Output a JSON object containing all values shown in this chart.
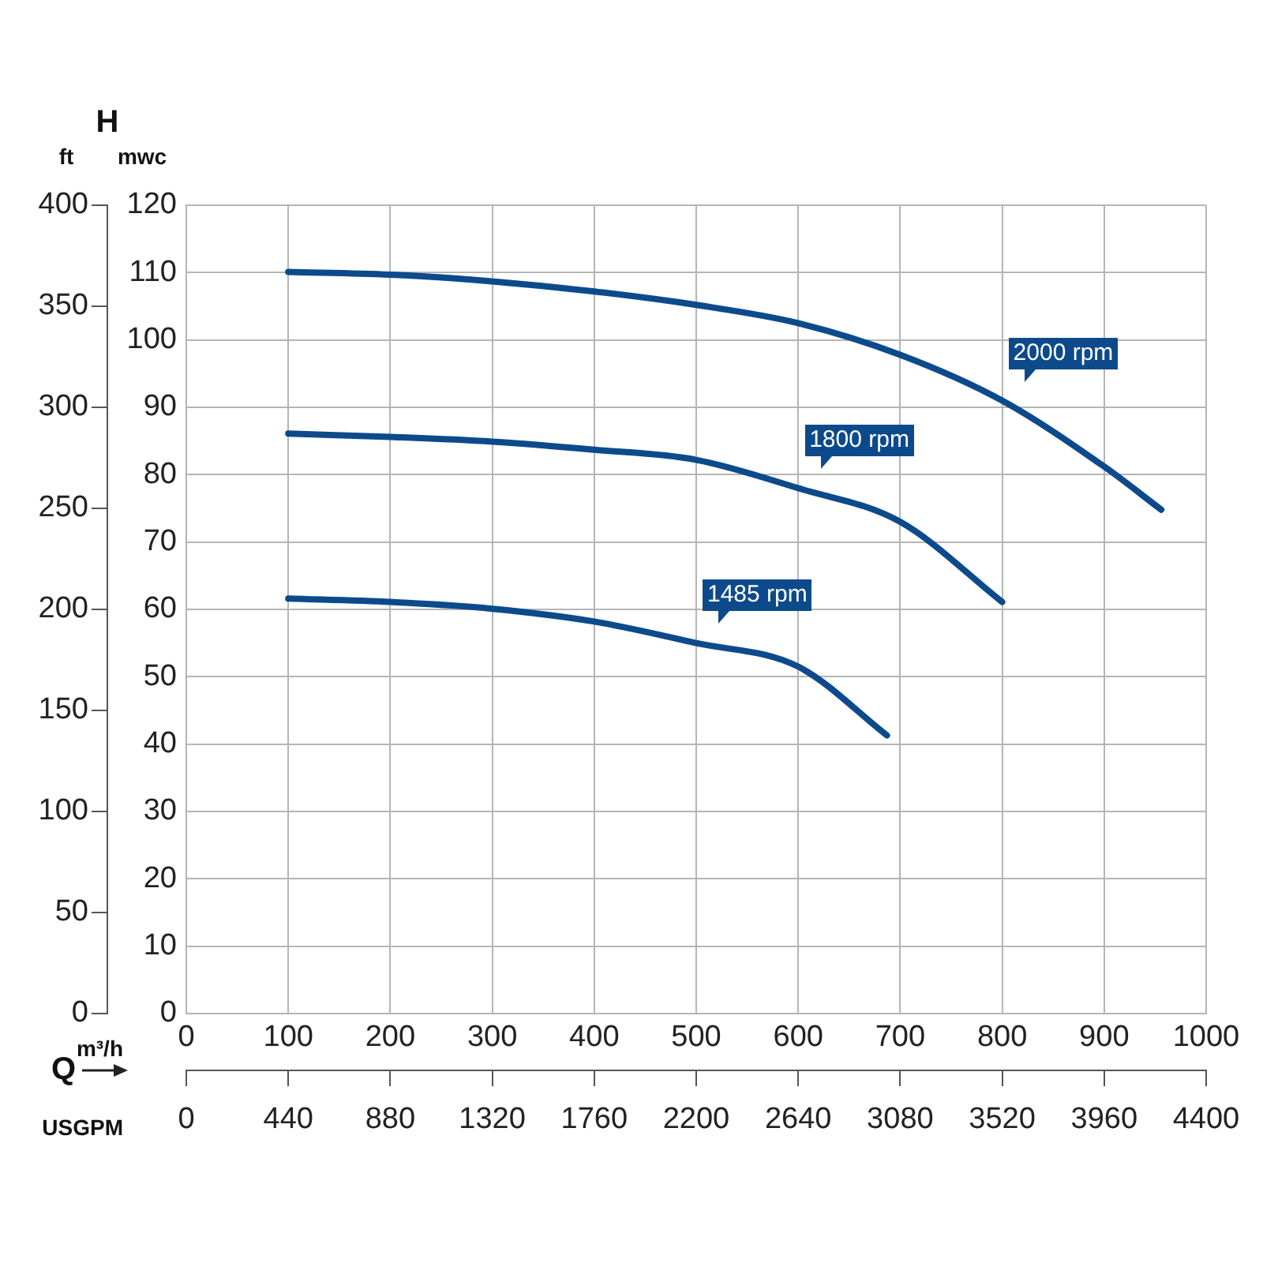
{
  "chart_data": {
    "type": "line",
    "xlabel": "m³/h",
    "x2label": "USGPM",
    "ylabel": "mwc",
    "y2label": "ft",
    "annotations": [
      "H",
      "Q"
    ],
    "series": [
      {
        "name": "2000 rpm",
        "color": "#0d4a8c",
        "x": [
          100,
          200,
          300,
          400,
          500,
          600,
          700,
          800,
          900,
          956
        ],
        "values": [
          110.1,
          109.7,
          108.7,
          107.2,
          105.2,
          102.5,
          97.8,
          91,
          81.2,
          74.8
        ]
      },
      {
        "name": "1800 rpm",
        "color": "#0d4a8c",
        "x": [
          100,
          200,
          300,
          400,
          500,
          600,
          700,
          800
        ],
        "values": [
          86.1,
          85.6,
          84.9,
          83.7,
          82.2,
          78,
          73,
          61.1
        ]
      },
      {
        "name": "1485 rpm",
        "color": "#0d4a8c",
        "x": [
          100,
          200,
          300,
          400,
          500,
          600,
          687
        ],
        "values": [
          61.6,
          61.1,
          60.1,
          58.2,
          55,
          51.5,
          41.3
        ]
      }
    ],
    "xlim": [
      0,
      1000
    ],
    "xticks": [
      0,
      100,
      200,
      300,
      400,
      500,
      600,
      700,
      800,
      900,
      1000
    ],
    "x2lim": [
      0,
      4400
    ],
    "x2ticks": [
      0,
      440,
      880,
      1320,
      1760,
      2200,
      2640,
      3080,
      3520,
      3960,
      4400
    ],
    "ylim": [
      0,
      120
    ],
    "yticks": [
      0,
      10,
      20,
      30,
      40,
      50,
      60,
      70,
      80,
      90,
      100,
      110,
      120
    ],
    "y2lim": [
      0,
      400
    ],
    "y2ticks": [
      0,
      50,
      100,
      150,
      200,
      250,
      300,
      350,
      400
    ],
    "grid": true,
    "legend": false,
    "marker": "none",
    "line_style": "solid"
  }
}
